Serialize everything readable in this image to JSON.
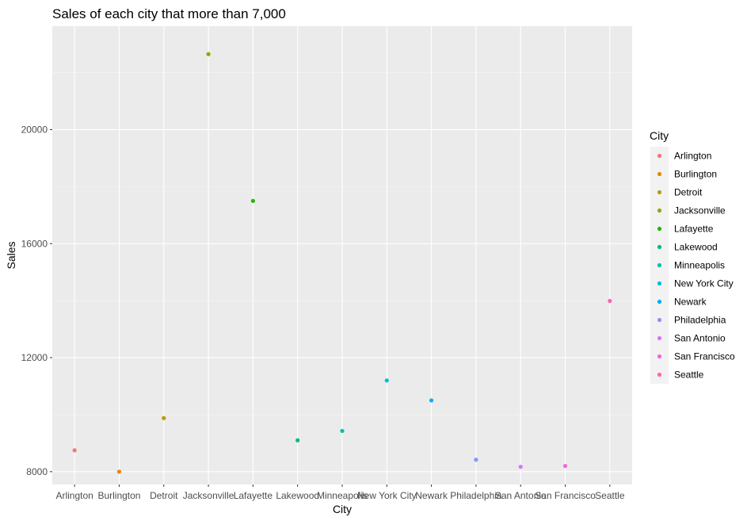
{
  "chart_data": {
    "type": "scatter",
    "title": "Sales of each city that more than 7,000",
    "xlabel": "City",
    "ylabel": "Sales",
    "categories": [
      "Arlington",
      "Burlington",
      "Detroit",
      "Jacksonville",
      "Lafayette",
      "Lakewood",
      "Minneapolis",
      "New York City",
      "Newark",
      "Philadelphia",
      "San Antonio",
      "San Francisco",
      "Seattle"
    ],
    "values": [
      8750,
      8000,
      9880,
      22650,
      17500,
      9100,
      9430,
      11200,
      10500,
      8420,
      8170,
      8200,
      13990
    ],
    "colors": [
      "#F8766D",
      "#E18A00",
      "#BE9C00",
      "#8CAB00",
      "#24B700",
      "#00BE70",
      "#00C1AB",
      "#00BBDA",
      "#00ACFC",
      "#8B93FF",
      "#D575FE",
      "#F962DD",
      "#FF65AC"
    ],
    "ylim": [
      7550,
      23630
    ],
    "yticks": [
      8000,
      12000,
      16000,
      20000
    ],
    "ytick_labels": [
      "8000",
      "12000",
      "16000",
      "20000"
    ],
    "grid": true,
    "legend": {
      "title": "City",
      "position": "right"
    }
  }
}
